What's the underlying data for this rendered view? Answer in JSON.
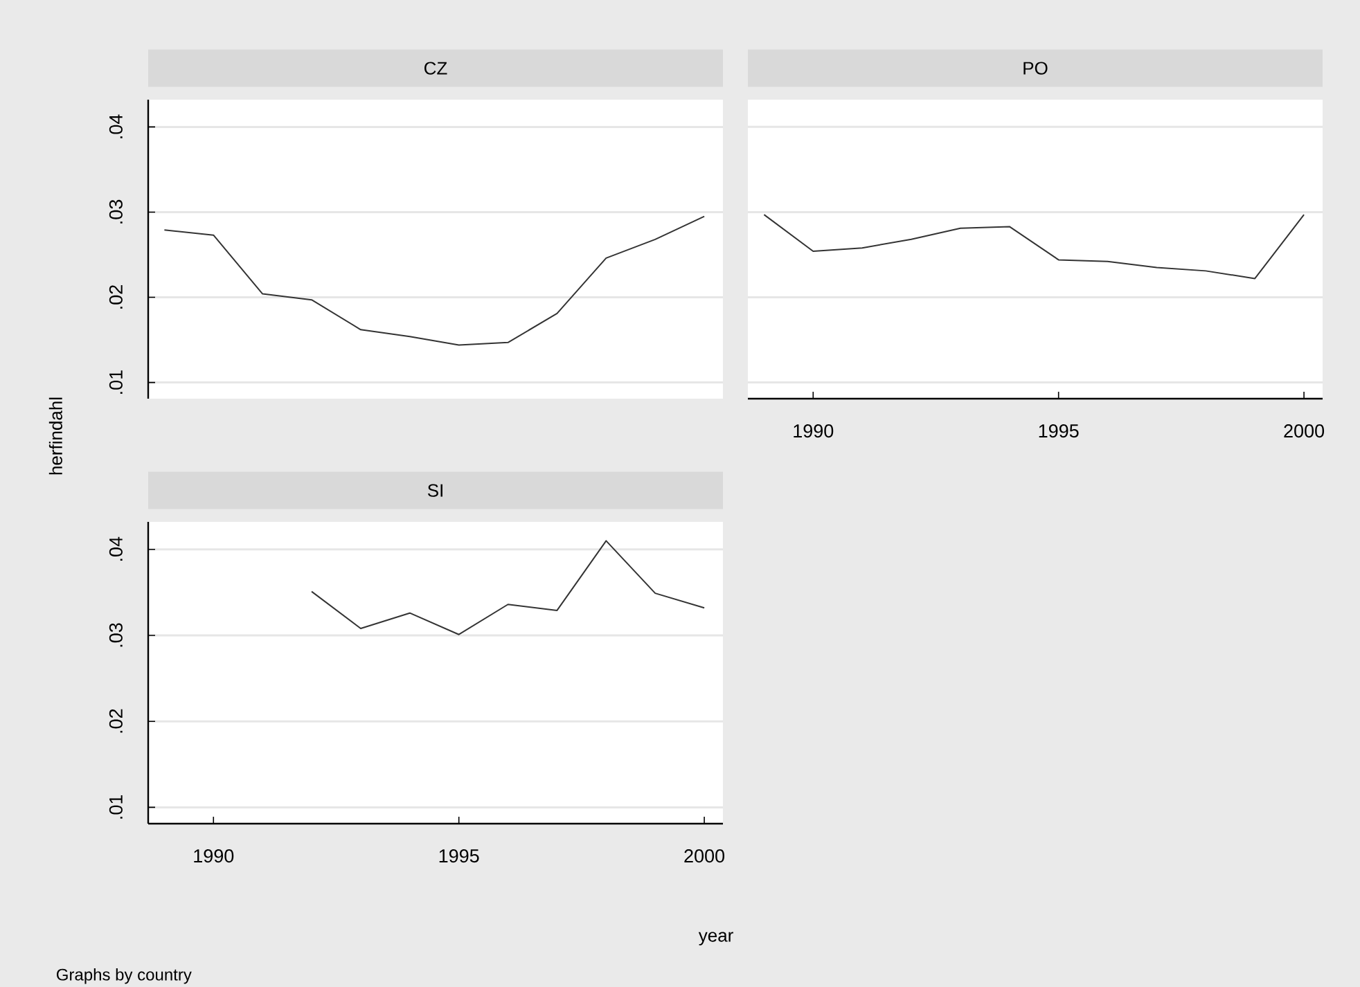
{
  "chart_data": [
    {
      "type": "line",
      "title": "CZ",
      "ylabel": "herfindahl",
      "x": [
        1989,
        1990,
        1991,
        1992,
        1993,
        1994,
        1995,
        1996,
        1997,
        1998,
        1999,
        2000
      ],
      "values": [
        0.0279,
        0.0273,
        0.0204,
        0.0197,
        0.0162,
        0.0154,
        0.0144,
        0.0147,
        0.0181,
        0.0246,
        0.0268,
        0.0295
      ],
      "color": "#333333",
      "xlim": [
        1988.67,
        2000.38
      ],
      "ylim": [
        0.0081,
        0.0432
      ],
      "yticks": [
        {
          "value": 0.01,
          "label": ".01"
        },
        {
          "value": 0.02,
          "label": ".02"
        },
        {
          "value": 0.03,
          "label": ".03"
        },
        {
          "value": 0.04,
          "label": ".04"
        }
      ],
      "grid": "y",
      "tick_labels": "y"
    },
    {
      "type": "line",
      "title": "PO",
      "x": [
        1989,
        1990,
        1991,
        1992,
        1993,
        1994,
        1995,
        1996,
        1997,
        1998,
        1999,
        2000
      ],
      "values": [
        0.0297,
        0.0254,
        0.0258,
        0.0268,
        0.0281,
        0.0283,
        0.0244,
        0.0242,
        0.0235,
        0.0231,
        0.0222,
        0.0297
      ],
      "color": "#333333",
      "xlim": [
        1988.67,
        2000.38
      ],
      "ylim": [
        0.0081,
        0.0432
      ],
      "xticks": [
        1990,
        1995,
        2000
      ],
      "yticks": [
        0.01,
        0.02,
        0.03,
        0.04
      ],
      "grid": "y",
      "tick_labels": "x"
    },
    {
      "type": "line",
      "title": "SI",
      "xlabel": "year",
      "annotations": [
        "Graphs by country"
      ],
      "x": [
        1992,
        1993,
        1994,
        1995,
        1996,
        1997,
        1998,
        1999,
        2000
      ],
      "values": [
        0.0351,
        0.0308,
        0.0326,
        0.0301,
        0.0336,
        0.0329,
        0.041,
        0.0349,
        0.0332
      ],
      "color": "#333333",
      "xlim": [
        1988.67,
        2000.38
      ],
      "ylim": [
        0.0081,
        0.0432
      ],
      "xticks": [
        1990,
        1995,
        2000
      ],
      "yticks": [
        {
          "value": 0.01,
          "label": ".01"
        },
        {
          "value": 0.02,
          "label": ".02"
        },
        {
          "value": 0.03,
          "label": ".03"
        },
        {
          "value": 0.04,
          "label": ".04"
        }
      ],
      "grid": "y"
    }
  ]
}
